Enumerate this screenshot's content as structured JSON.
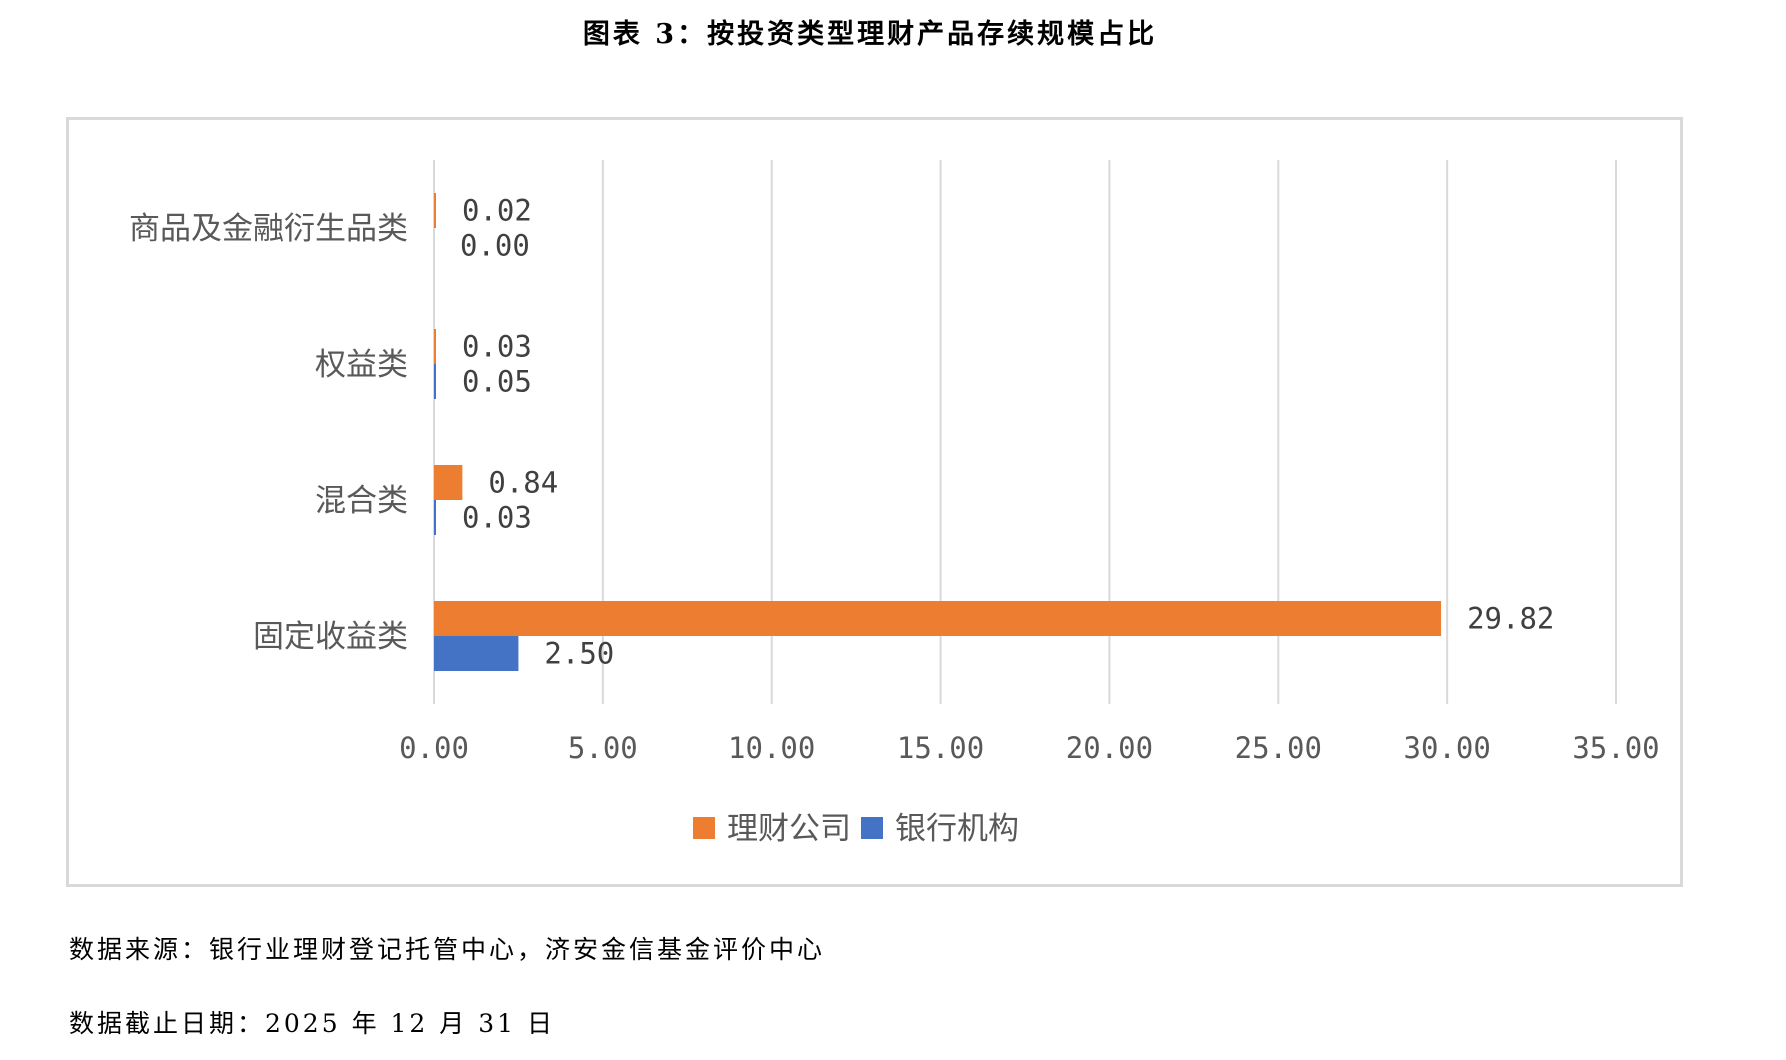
{
  "title": "图表 3：按投资类型理财产品存续规模占比",
  "chart_data": {
    "type": "bar",
    "orientation": "horizontal",
    "categories": [
      "商品及金融衍生品类",
      "权益类",
      "混合类",
      "固定收益类"
    ],
    "series": [
      {
        "name": "理财公司",
        "color": "#ED7D31",
        "values": [
          0.02,
          0.03,
          0.84,
          29.82
        ]
      },
      {
        "name": "银行机构",
        "color": "#4472C4",
        "values": [
          0.0,
          0.05,
          0.03,
          2.5
        ]
      }
    ],
    "data_labels": [
      [
        "0.02",
        "0.03",
        "0.84",
        "29.82"
      ],
      [
        "0.00",
        "0.05",
        "0.03",
        "2.50"
      ]
    ],
    "xlim": [
      0,
      35
    ],
    "xticks": [
      "0.00",
      "5.00",
      "10.00",
      "15.00",
      "20.00",
      "25.00",
      "30.00",
      "35.00"
    ],
    "grid": true,
    "legend": "bottom"
  },
  "footer": {
    "source": "数据来源：银行业理财登记托管中心，济安金信基金评价中心",
    "date": "数据截止日期：2025 年 12 月 31 日"
  }
}
